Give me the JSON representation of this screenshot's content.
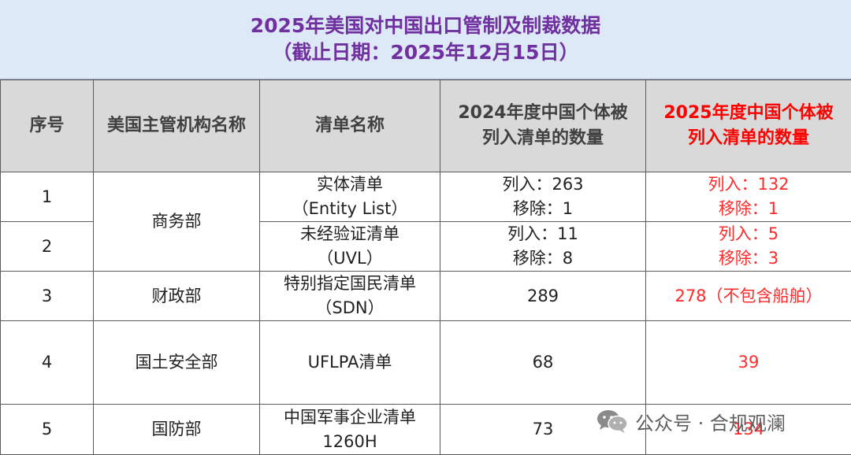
{
  "title": {
    "line1": "2025年美国对中国出口管制及制裁数据",
    "line2": "（截止日期：2025年12月15日）"
  },
  "headers": {
    "seq": "序号",
    "agency": "美国主管机构名称",
    "list_name": "清单名称",
    "y2024_line1": "2024年度中国个体被",
    "y2024_line2": "列入清单的数量",
    "y2025_line1": "2025年度中国个体被",
    "y2025_line2": "列入清单的数量"
  },
  "rows": [
    {
      "seq": "1",
      "agency": "商务部",
      "list_line1": "实体清单",
      "list_line2": "（Entity List）",
      "y2024_line1": "列入：263",
      "y2024_line2": "移除：1",
      "y2025_line1": "列入：132",
      "y2025_line2": "移除：1"
    },
    {
      "seq": "2",
      "list_line1": "未经验证清单",
      "list_line2": "（UVL）",
      "y2024_line1": "列入：11",
      "y2024_line2": "移除：8",
      "y2025_line1": "列入：5",
      "y2025_line2": "移除：3"
    },
    {
      "seq": "3",
      "agency": "财政部",
      "list_line1": "特别指定国民清单",
      "list_line2": "（SDN）",
      "y2024": "289",
      "y2025": "278（不包含船舶）"
    },
    {
      "seq": "4",
      "agency": "国土安全部",
      "list_line1": "UFLPA清单",
      "y2024": "68",
      "y2025": "39"
    },
    {
      "seq": "5",
      "agency": "国防部",
      "list_line1": "中国军事企业清单",
      "list_line2": "1260H",
      "y2024": "73",
      "y2025": "134"
    }
  ],
  "watermark": {
    "text": "公众号 · 合规观澜",
    "icon": "wechat-icon"
  },
  "colors": {
    "title_text": "#7030a0",
    "title_bg": "#dde9f7",
    "header_bg": "#d9d9d9",
    "highlight_red": "#ff0000"
  }
}
